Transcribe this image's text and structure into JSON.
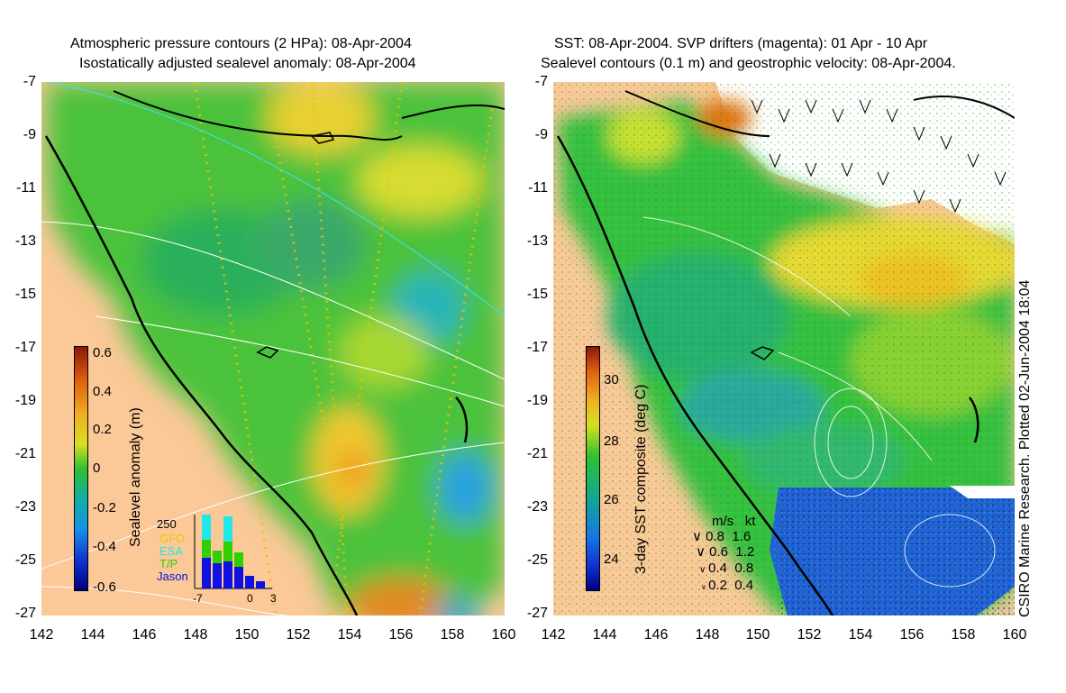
{
  "left_panel": {
    "title_line1": "Atmospheric pressure contours (2 HPa): 08-Apr-2004",
    "title_line2": "Isostatically adjusted sealevel anomaly: 08-Apr-2004",
    "y_ticks": [
      "-7",
      "-9",
      "-11",
      "-13",
      "-15",
      "-17",
      "-19",
      "-21",
      "-23",
      "-25",
      "-27"
    ],
    "x_ticks": [
      "142",
      "144",
      "146",
      "148",
      "150",
      "152",
      "154",
      "156",
      "158",
      "160"
    ],
    "colorbar": {
      "label": "Sealevel anomaly (m)",
      "ticks": [
        "0.6",
        "0.4",
        "0.2",
        "0",
        "-0.2",
        "-0.4",
        "-0.6"
      ],
      "range": [
        -0.6,
        0.6
      ]
    },
    "inset": {
      "count_label": "250",
      "series": [
        {
          "name": "GFO",
          "color": "#f2c200"
        },
        {
          "name": "ESA",
          "color": "#20e8e8"
        },
        {
          "name": "T/P",
          "color": "#30d000"
        },
        {
          "name": "Jason",
          "color": "#1010e0"
        }
      ],
      "x_ticks": [
        "-7",
        "0",
        "3"
      ]
    }
  },
  "right_panel": {
    "title_line1": "SST: 08-Apr-2004. SVP drifters (magenta): 01 Apr - 10 Apr",
    "title_line2": "Sealevel contours (0.1 m) and geostrophic velocity: 08-Apr-2004.",
    "y_ticks": [
      "-7",
      "-9",
      "-11",
      "-13",
      "-15",
      "-17",
      "-19",
      "-21",
      "-23",
      "-25",
      "-27"
    ],
    "x_ticks": [
      "142",
      "144",
      "146",
      "148",
      "150",
      "152",
      "154",
      "156",
      "158",
      "160"
    ],
    "colorbar": {
      "label": "3-day SST composite (deg C)",
      "ticks": [
        "30",
        "28",
        "26",
        "24"
      ],
      "range": [
        23,
        31
      ]
    },
    "velocity_legend": {
      "header_ms": "m/s",
      "header_kt": "kt",
      "rows": [
        {
          "ms": "0.8",
          "kt": "1.6"
        },
        {
          "ms": "0.6",
          "kt": "1.2"
        },
        {
          "ms": "0.4",
          "kt": "0.8"
        },
        {
          "ms": "0.2",
          "kt": "0.4"
        }
      ]
    },
    "credit": "CSIRO Marine Research. Plotted 02-Jun-2004 18:04"
  },
  "colors": {
    "land": "#fbc898",
    "coast": "#000000"
  }
}
